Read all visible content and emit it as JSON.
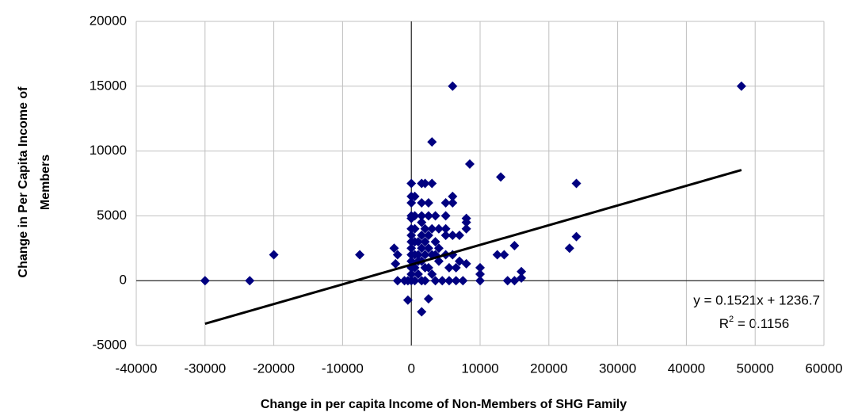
{
  "chart_data": {
    "type": "scatter",
    "xlabel": "Change in per capita Income of Non-Members of SHG Family",
    "ylabel": [
      "Change in Per Capita Income of",
      "Members"
    ],
    "color": "#000080",
    "x": [
      -30000,
      -23500,
      -20000,
      -7500,
      -2500,
      -2300,
      -2000,
      -2000,
      -1000,
      0,
      0,
      0,
      0,
      0,
      0,
      0,
      0,
      0,
      0,
      0,
      0,
      0,
      0,
      -500,
      500,
      500,
      500,
      500,
      500,
      500,
      500,
      -500,
      1000,
      1000,
      1000,
      1000,
      1500,
      1500,
      1500,
      1500,
      1500,
      1500,
      1500,
      1500,
      1500,
      2000,
      2000,
      2000,
      2000,
      2000,
      2000,
      2500,
      2500,
      2500,
      2500,
      2500,
      2500,
      3000,
      3000,
      3000,
      3000,
      3000,
      3500,
      3500,
      3500,
      3500,
      4000,
      4000,
      4000,
      4500,
      5000,
      5000,
      5000,
      5000,
      5000,
      5500,
      5500,
      6000,
      6000,
      6000,
      6000,
      6000,
      6500,
      6500,
      7000,
      7000,
      7500,
      8000,
      8000,
      8000,
      8000,
      8500,
      10000,
      10000,
      10000,
      12500,
      13000,
      13500,
      14000,
      15000,
      15000,
      16000,
      16000,
      23000,
      24000,
      24000,
      48000
    ],
    "y": [
      0,
      0,
      2000,
      2000,
      2500,
      1300,
      2000,
      0,
      0,
      7500,
      6500,
      6000,
      5000,
      4800,
      4000,
      3500,
      3000,
      2500,
      2000,
      1500,
      1000,
      500,
      0,
      0,
      6500,
      5000,
      4000,
      3000,
      2000,
      1000,
      0,
      -1500,
      3000,
      2000,
      1500,
      500,
      7500,
      6000,
      5000,
      4500,
      3500,
      2500,
      1500,
      0,
      -2400,
      7500,
      4000,
      3000,
      2000,
      1000,
      0,
      6000,
      5000,
      3500,
      2500,
      1000,
      -1400,
      10700,
      7500,
      4000,
      2000,
      500,
      5000,
      3000,
      2000,
      0,
      4000,
      2500,
      1500,
      0,
      6000,
      5000,
      4000,
      3500,
      2000,
      1000,
      0,
      15000,
      6500,
      6000,
      3500,
      2000,
      1000,
      0,
      3500,
      1500,
      0,
      4500,
      4000,
      4800,
      1300,
      9000,
      0,
      1000,
      500,
      2000,
      8000,
      2000,
      0,
      2700,
      0,
      200,
      700,
      2500,
      7500,
      3400,
      15000
    ],
    "trendline": {
      "x": [
        -30000,
        48000
      ],
      "y": [
        -3326.3,
        8537.5
      ],
      "color": "#000000",
      "equation": "y = 0.1521x + 1236.7",
      "r2": [
        "R",
        "2",
        " = 0.1156"
      ]
    },
    "xlim": [
      -40000,
      60000
    ],
    "xticks": [
      -40000,
      -30000,
      -20000,
      -10000,
      0,
      10000,
      20000,
      30000,
      40000,
      50000,
      60000
    ],
    "ylim": [
      -5000,
      20000
    ],
    "yticks": [
      -5000,
      0,
      5000,
      10000,
      15000,
      20000
    ],
    "grid": true
  }
}
